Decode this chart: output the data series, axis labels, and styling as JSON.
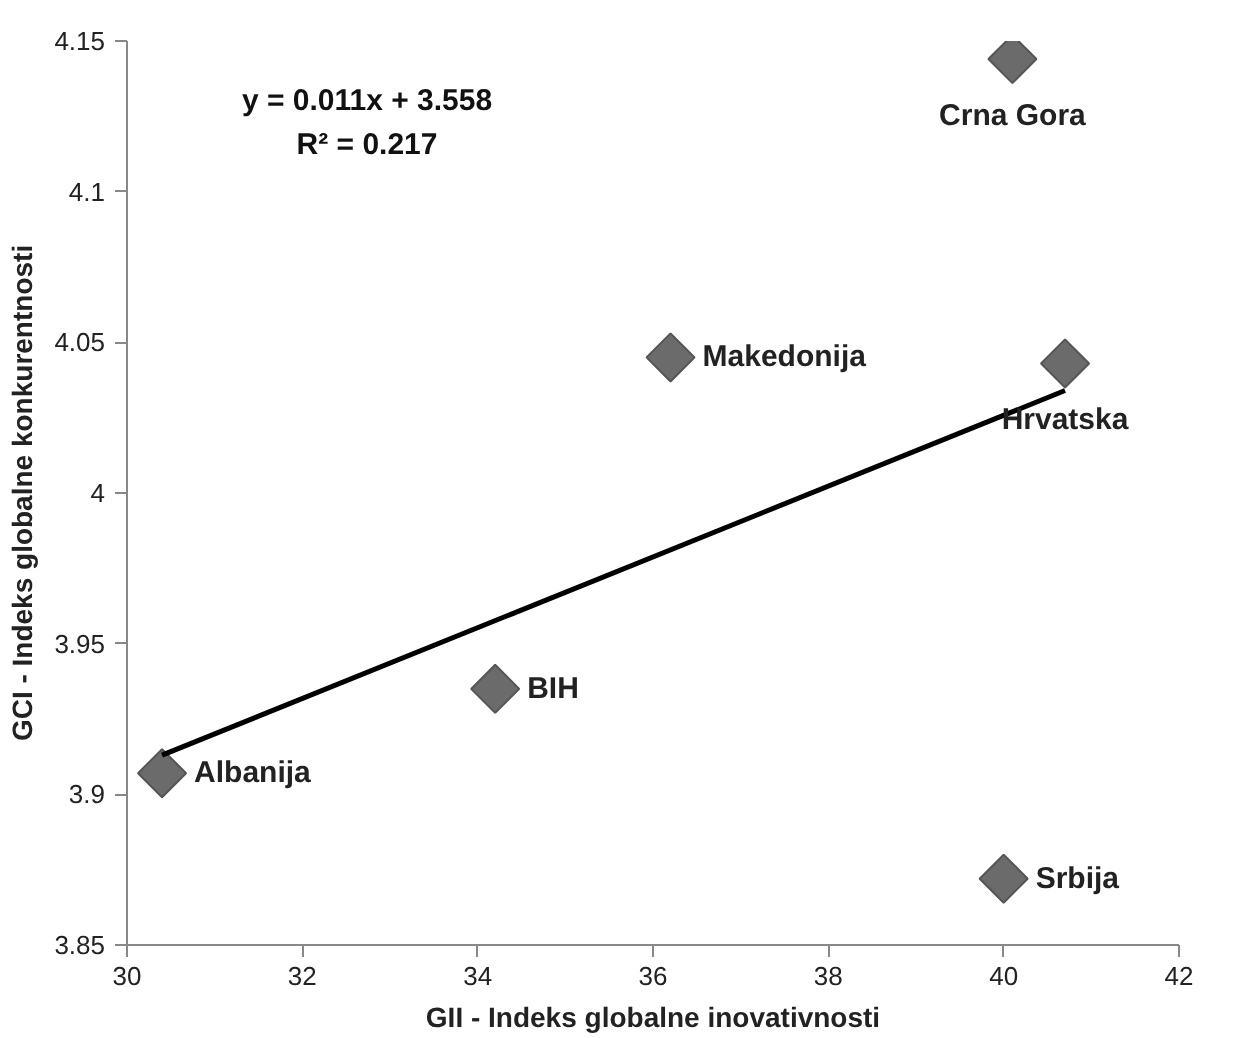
{
  "chart_data": {
    "type": "scatter",
    "xlabel": "GII - Indeks globalne inovativnosti",
    "ylabel": "GCI - Indeks globalne konkurentnosti",
    "xlim": [
      30,
      42
    ],
    "xticks": [
      30,
      32,
      34,
      36,
      38,
      40,
      42
    ],
    "ylim": [
      3.85,
      4.15
    ],
    "yticks": [
      3.85,
      3.9,
      3.95,
      4,
      4.05,
      4.1,
      4.15
    ],
    "grid": false,
    "marker": "diamond",
    "series": [
      {
        "color": "#6b6b6b",
        "x": [
          30.4,
          34.2,
          36.2,
          40.7,
          40.1,
          40.0
        ],
        "values": [
          3.907,
          3.935,
          4.045,
          4.043,
          4.144,
          3.872
        ]
      },
      {
        "type": "line",
        "marker": "none",
        "color": "#000000",
        "x": [
          30.4,
          40.7
        ],
        "values": [
          3.913,
          4.034
        ]
      }
    ],
    "annotations": [
      {
        "text": "Albanija",
        "x": 30.4,
        "y": 3.907
      },
      {
        "text": "BIH",
        "x": 34.2,
        "y": 3.935
      },
      {
        "text": "Makedonija",
        "x": 36.2,
        "y": 4.045
      },
      {
        "text": "Hrvatska",
        "x": 40.7,
        "y": 4.043
      },
      {
        "text": "Crna Gora",
        "x": 40.1,
        "y": 4.144
      },
      {
        "text": "Srbija",
        "x": 40.0,
        "y": 3.872
      },
      "y = 0.011x + 3.558",
      "R² = 0.217"
    ]
  }
}
